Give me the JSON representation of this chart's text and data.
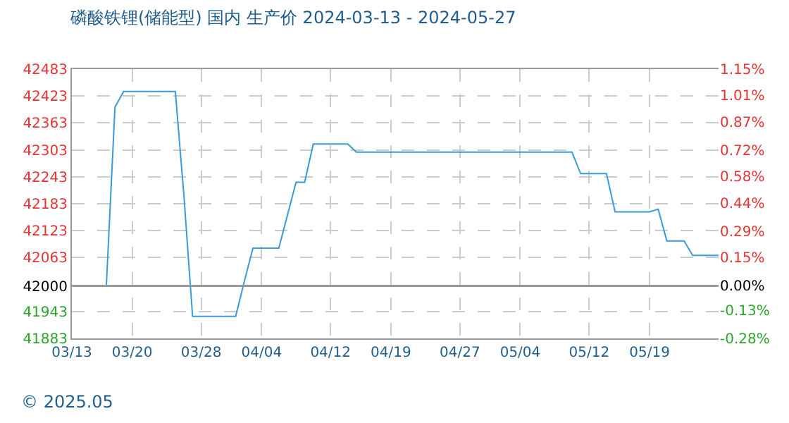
{
  "chart_data": {
    "type": "line",
    "title": "磷酸铁锂(储能型) 国内 生产价 2024-03-13 - 2024-05-27",
    "x": [
      "2024-03-13",
      "2024-03-17",
      "2024-03-18",
      "2024-03-19",
      "2024-03-25",
      "2024-03-26",
      "2024-03-27",
      "2024-04-01",
      "2024-04-02",
      "2024-04-03",
      "2024-04-06",
      "2024-04-08",
      "2024-04-09",
      "2024-04-10",
      "2024-04-14",
      "2024-04-15",
      "2024-05-10",
      "2024-05-11",
      "2024-05-14",
      "2024-05-15",
      "2024-05-19",
      "2024-05-20",
      "2024-05-21",
      "2024-05-23",
      "2024-05-24",
      "2024-05-27"
    ],
    "series": [
      {
        "color": "#3a9ad9",
        "values": [
          42000,
          42000,
          42398,
          42433,
          42433,
          42200,
          41932,
          41932,
          42010,
          42084,
          42084,
          42231,
          42231,
          42316,
          42316,
          42298,
          42298,
          42250,
          42250,
          42165,
          42165,
          42171,
          42100,
          42100,
          42068,
          42068
        ]
      }
    ],
    "xlim": [
      "2024-03-13",
      "2024-05-27"
    ],
    "xticks": [
      {
        "value": "2024-03-13",
        "label": "03/13"
      },
      {
        "value": "2024-03-20",
        "label": "03/20"
      },
      {
        "value": "2024-03-28",
        "label": "03/28"
      },
      {
        "value": "2024-04-04",
        "label": "04/04"
      },
      {
        "value": "2024-04-12",
        "label": "04/12"
      },
      {
        "value": "2024-04-19",
        "label": "04/19"
      },
      {
        "value": "2024-04-27",
        "label": "04/27"
      },
      {
        "value": "2024-05-04",
        "label": "05/04"
      },
      {
        "value": "2024-05-12",
        "label": "05/12"
      },
      {
        "value": "2024-05-19",
        "label": "05/19"
      }
    ],
    "ylim": [
      41883,
      42483
    ],
    "yticks": [
      42483,
      42423,
      42363,
      42303,
      42243,
      42183,
      42123,
      42063,
      42000,
      41943,
      41883
    ],
    "y2lim": [
      -0.28,
      1.15
    ],
    "y2ticks": [
      {
        "value": 1.15,
        "label": "1.15%"
      },
      {
        "value": 1.01,
        "label": "1.01%"
      },
      {
        "value": 0.87,
        "label": "0.87%"
      },
      {
        "value": 0.72,
        "label": "0.72%"
      },
      {
        "value": 0.58,
        "label": "0.58%"
      },
      {
        "value": 0.44,
        "label": "0.44%"
      },
      {
        "value": 0.29,
        "label": "0.29%"
      },
      {
        "value": 0.15,
        "label": "0.15%"
      },
      {
        "value": 0,
        "label": "0.00%"
      },
      {
        "value": -0.13,
        "label": "-0.13%"
      },
      {
        "value": -0.28,
        "label": "-0.28%"
      }
    ],
    "ref_lines": [
      {
        "axis": "y",
        "value": 42000,
        "color": "#999999"
      }
    ],
    "annotations": [
      "© 2025.05"
    ],
    "grid": true,
    "marker": "none",
    "line_style": "solid"
  }
}
